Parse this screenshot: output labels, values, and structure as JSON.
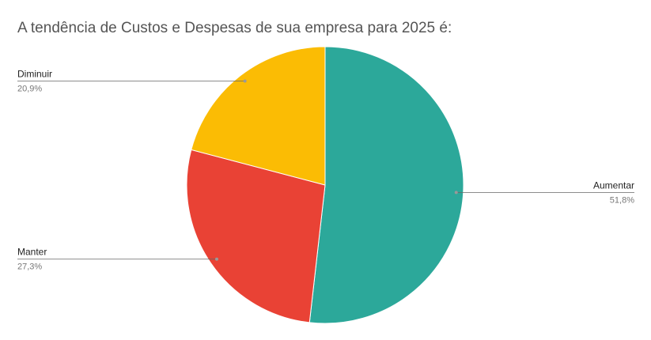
{
  "chart_data": {
    "type": "pie",
    "title": "A tendência de Custos e Despesas de sua empresa para 2025 é:",
    "categories": [
      "Aumentar",
      "Manter",
      "Diminuir"
    ],
    "values": [
      51.8,
      27.3,
      20.9
    ],
    "value_labels": [
      "51,8%",
      "27,3%",
      "20,9%"
    ],
    "colors": [
      "#2ca89a",
      "#e94235",
      "#fbbc04"
    ]
  }
}
